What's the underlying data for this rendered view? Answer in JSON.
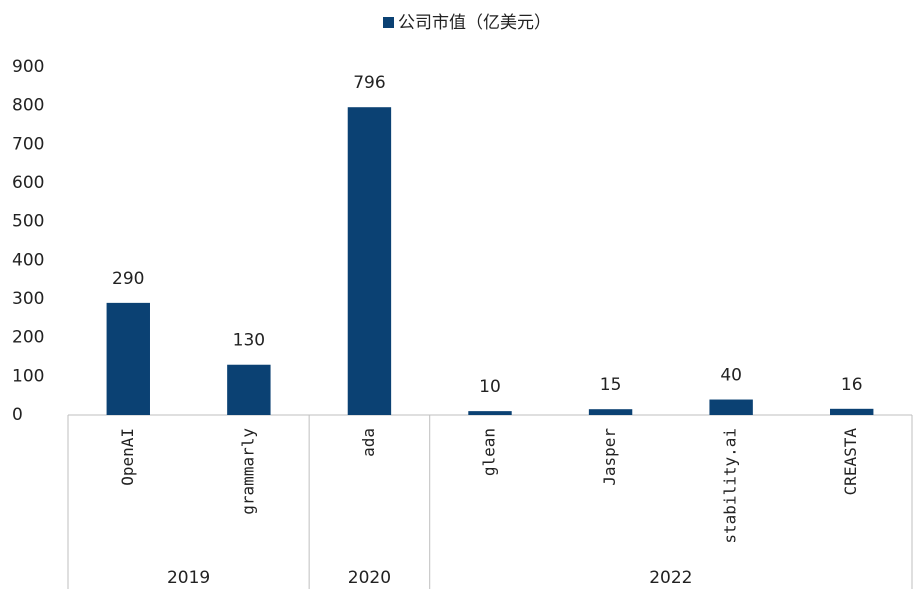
{
  "chart_data": {
    "type": "bar",
    "series": [
      {
        "name": "公司市值（亿美元）",
        "color": "#0b4173",
        "values": [
          290,
          130,
          796,
          10,
          15,
          40,
          16
        ]
      }
    ],
    "categories": [
      "OpenAI",
      "grammarly",
      "ada",
      "glean",
      "Jasper",
      "stability.ai",
      "CREASTA"
    ],
    "groups": [
      {
        "label": "2019",
        "count": 2
      },
      {
        "label": "2020",
        "count": 1
      },
      {
        "label": "2022",
        "count": 4
      }
    ],
    "ylim": [
      0,
      900
    ],
    "yticks": [
      0,
      100,
      200,
      300,
      400,
      500,
      600,
      700,
      800,
      900
    ],
    "grid": false
  }
}
